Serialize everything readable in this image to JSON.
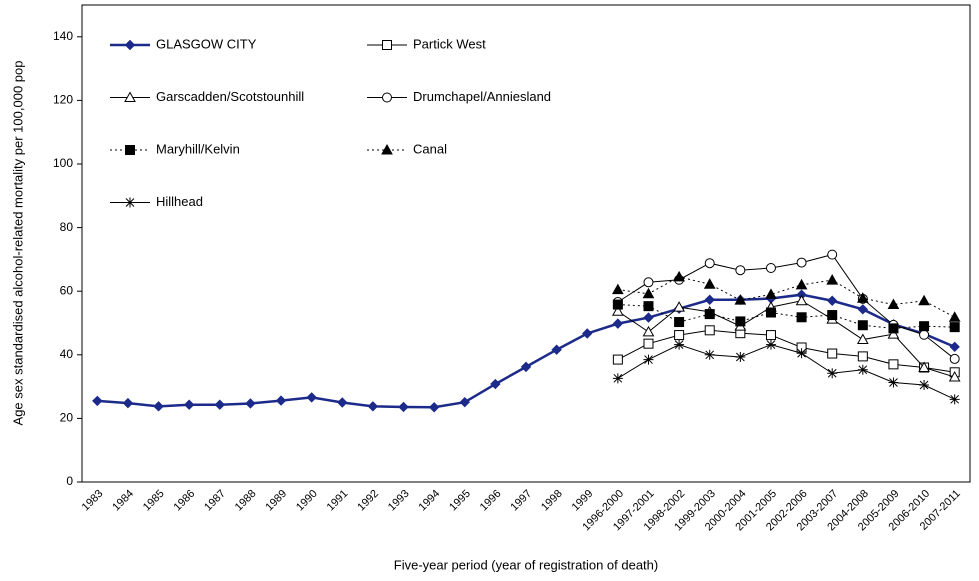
{
  "chart_data": {
    "type": "line",
    "y_label": "Age sex standardised alcohol-related mortality per 100,000 pop",
    "x_label": "Five-year period (year of registration of death)",
    "categories": [
      "1983",
      "1984",
      "1985",
      "1986",
      "1987",
      "1988",
      "1989",
      "1990",
      "1991",
      "1992",
      "1993",
      "1994",
      "1995",
      "1996",
      "1997",
      "1998",
      "1999",
      "1996-2000",
      "1997-2001",
      "1998-2002",
      "1999-2003",
      "2000-2004",
      "2001-2005",
      "2002-2006",
      "2003-2007",
      "2004-2008",
      "2005-2009",
      "2006-2010",
      "2007-2011"
    ],
    "ylim": [
      0,
      150
    ],
    "yticks": [
      0,
      20,
      40,
      60,
      80,
      100,
      120,
      140
    ],
    "grid": false,
    "legend": "upper left",
    "series": [
      {
        "name": "GLASGOW CITY",
        "color": "#1c2a8a",
        "marker": "diamond",
        "filled": true,
        "dash": false,
        "values": [
          25.5,
          24.8,
          23.8,
          24.3,
          24.3,
          24.7,
          25.6,
          26.6,
          25.0,
          23.8,
          23.6,
          23.5,
          25.1,
          30.8,
          36.2,
          41.6,
          46.7,
          49.8,
          51.7,
          54.5,
          57.3,
          57.3,
          57.7,
          58.9,
          57.0,
          54.3,
          49.6,
          46.6,
          42.5
        ]
      },
      {
        "name": "Partick West",
        "color": "#000000",
        "marker": "square",
        "filled": false,
        "dash": false,
        "values": [
          null,
          null,
          null,
          null,
          null,
          null,
          null,
          null,
          null,
          null,
          null,
          null,
          null,
          null,
          null,
          null,
          null,
          38.5,
          43.5,
          46.2,
          47.7,
          46.8,
          46.2,
          42.3,
          40.4,
          39.5,
          37.0,
          36.0,
          34.5
        ]
      },
      {
        "name": "Garscadden/Scotstounhill",
        "color": "#000000",
        "marker": "triangle",
        "filled": false,
        "dash": false,
        "values": [
          null,
          null,
          null,
          null,
          null,
          null,
          null,
          null,
          null,
          null,
          null,
          null,
          null,
          null,
          null,
          null,
          null,
          53.7,
          47.2,
          55.0,
          53.5,
          49.0,
          55.0,
          57.0,
          51.2,
          44.8,
          46.5,
          36.0,
          33.0
        ]
      },
      {
        "name": "Drumchapel/Anniesland",
        "color": "#000000",
        "marker": "circle",
        "filled": false,
        "dash": false,
        "values": [
          null,
          null,
          null,
          null,
          null,
          null,
          null,
          null,
          null,
          null,
          null,
          null,
          null,
          null,
          null,
          null,
          null,
          56.6,
          62.8,
          63.6,
          68.8,
          66.6,
          67.3,
          69.0,
          71.5,
          57.6,
          49.4,
          46.3,
          38.7
        ]
      },
      {
        "name": "Maryhill/Kelvin",
        "color": "#000000",
        "marker": "square",
        "filled": true,
        "dash": true,
        "values": [
          null,
          null,
          null,
          null,
          null,
          null,
          null,
          null,
          null,
          null,
          null,
          null,
          null,
          null,
          null,
          null,
          null,
          55.8,
          55.3,
          50.3,
          52.8,
          50.5,
          53.3,
          51.8,
          52.5,
          49.3,
          48.3,
          49.0,
          48.7
        ]
      },
      {
        "name": "Canal",
        "color": "#000000",
        "marker": "triangle",
        "filled": true,
        "dash": true,
        "values": [
          null,
          null,
          null,
          null,
          null,
          null,
          null,
          null,
          null,
          null,
          null,
          null,
          null,
          null,
          null,
          null,
          null,
          60.5,
          59.2,
          64.5,
          62.2,
          57.2,
          59.0,
          62.0,
          63.5,
          57.8,
          55.8,
          57.0,
          51.8
        ]
      },
      {
        "name": "Hillhead",
        "color": "#000000",
        "marker": "star",
        "filled": false,
        "dash": false,
        "values": [
          null,
          null,
          null,
          null,
          null,
          null,
          null,
          null,
          null,
          null,
          null,
          null,
          null,
          null,
          null,
          null,
          null,
          32.6,
          38.5,
          43.2,
          40.0,
          39.3,
          43.2,
          40.5,
          34.2,
          35.3,
          31.3,
          30.5,
          26.0
        ]
      }
    ]
  }
}
